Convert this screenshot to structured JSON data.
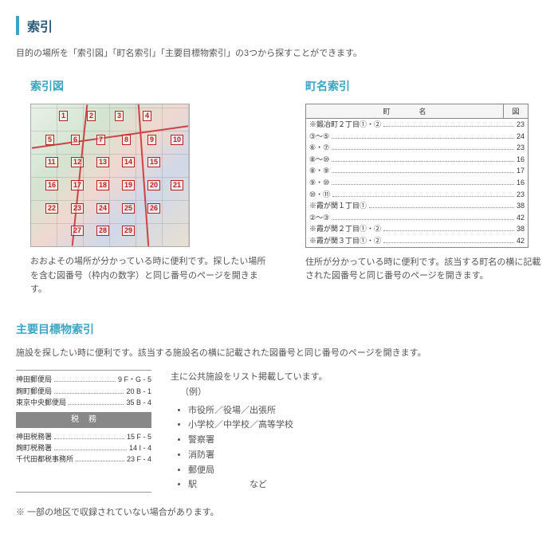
{
  "title": "索引",
  "intro": "目的の場所を「索引図」「町名索引」「主要目標物索引」の3つから探すことができます。",
  "sections": {
    "indexMap": {
      "title": "索引図",
      "desc": "おおよその場所が分かっている時に便利です。探したい場所を含む図番号（枠内の数字）と同じ番号のページを開きます。",
      "mapNumbers": [
        {
          "n": "1",
          "t": 8,
          "l": 35
        },
        {
          "n": "2",
          "t": 8,
          "l": 70
        },
        {
          "n": "3",
          "t": 8,
          "l": 105
        },
        {
          "n": "4",
          "t": 8,
          "l": 140
        },
        {
          "n": "5",
          "t": 38,
          "l": 18
        },
        {
          "n": "6",
          "t": 38,
          "l": 50
        },
        {
          "n": "7",
          "t": 38,
          "l": 82
        },
        {
          "n": "8",
          "t": 38,
          "l": 114
        },
        {
          "n": "9",
          "t": 38,
          "l": 146
        },
        {
          "n": "10",
          "t": 38,
          "l": 175
        },
        {
          "n": "11",
          "t": 66,
          "l": 18
        },
        {
          "n": "12",
          "t": 66,
          "l": 50
        },
        {
          "n": "13",
          "t": 66,
          "l": 82
        },
        {
          "n": "14",
          "t": 66,
          "l": 114
        },
        {
          "n": "15",
          "t": 66,
          "l": 146
        },
        {
          "n": "16",
          "t": 95,
          "l": 18
        },
        {
          "n": "17",
          "t": 95,
          "l": 50
        },
        {
          "n": "18",
          "t": 95,
          "l": 82
        },
        {
          "n": "19",
          "t": 95,
          "l": 114
        },
        {
          "n": "20",
          "t": 95,
          "l": 146
        },
        {
          "n": "21",
          "t": 95,
          "l": 175
        },
        {
          "n": "22",
          "t": 124,
          "l": 18
        },
        {
          "n": "23",
          "t": 124,
          "l": 50
        },
        {
          "n": "24",
          "t": 124,
          "l": 82
        },
        {
          "n": "25",
          "t": 124,
          "l": 114
        },
        {
          "n": "26",
          "t": 124,
          "l": 146
        },
        {
          "n": "27",
          "t": 152,
          "l": 50
        },
        {
          "n": "28",
          "t": 152,
          "l": 82
        },
        {
          "n": "29",
          "t": 152,
          "l": 114
        }
      ]
    },
    "townIndex": {
      "title": "町名索引",
      "header": {
        "name": "町　　　　名",
        "page": "図"
      },
      "rows": [
        {
          "label": "※鍛冶町２丁目①・②",
          "page": "23"
        },
        {
          "label": "③～⑤",
          "page": "24"
        },
        {
          "label": "⑥・⑦",
          "page": "23"
        },
        {
          "label": "⑧～⑩",
          "page": "16"
        },
        {
          "label": "⑧・⑨",
          "page": "17"
        },
        {
          "label": "⑨・⑩",
          "page": "16"
        },
        {
          "label": "⑩・⑪",
          "page": "23"
        },
        {
          "label": "※霞が関１丁目①",
          "page": "38"
        },
        {
          "label": "②～③",
          "page": "42"
        },
        {
          "label": "※霞が関２丁目①・②",
          "page": "38"
        },
        {
          "label": "※霞が関３丁目①・②",
          "page": "42"
        }
      ],
      "desc": "住所が分かっている時に便利です。該当する町名の横に記載された図番号と同じ番号のページを開きます。"
    },
    "landmark": {
      "title": "主要目標物索引",
      "intro": "施設を探したい時に便利です。該当する施設名の横に記載された図番号と同じ番号のページを開きます。",
      "postRows": [
        {
          "label": "神田郵便局",
          "page": "9 F・G - 5"
        },
        {
          "label": "麹町郵便局",
          "page": "20 B - 1"
        },
        {
          "label": "東京中央郵便局",
          "page": "35 B - 4"
        }
      ],
      "band": "税務",
      "taxRows": [
        {
          "label": "神田税務署",
          "page": "15 F - 5"
        },
        {
          "label": "麹町税務署",
          "page": "14 I - 4"
        },
        {
          "label": "千代田都税事務所",
          "page": "23 F - 4"
        }
      ],
      "text": {
        "lead": "主に公共施設をリスト掲載しています。",
        "exLabel": "（例）",
        "items": [
          "市役所／役場／出張所",
          "小学校／中学校／高等学校",
          "警察署",
          "消防署",
          "郵便局",
          "駅　　　　　　など"
        ]
      }
    }
  },
  "footnote": "※ 一部の地区で収録されていない場合があります。"
}
